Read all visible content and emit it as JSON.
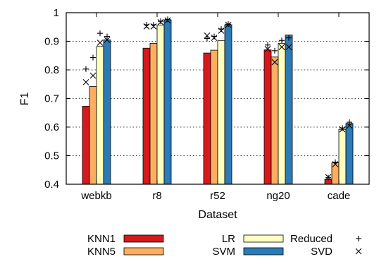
{
  "chart_data": {
    "type": "bar",
    "xlabel": "Dataset",
    "ylabel": "F1",
    "ylim": [
      0.4,
      1.0
    ],
    "yticks": [
      "0.4",
      "0.5",
      "0.6",
      "0.7",
      "0.8",
      "0.9",
      "1"
    ],
    "grid": true,
    "categories": [
      "webkb",
      "r8",
      "r52",
      "ng20",
      "cade"
    ],
    "series": [
      {
        "name": "KNN1",
        "color": "#d7191c",
        "values": [
          0.673,
          0.876,
          0.859,
          0.87,
          0.417
        ]
      },
      {
        "name": "KNN5",
        "color": "#fdae61",
        "values": [
          0.742,
          0.893,
          0.869,
          0.845,
          0.475
        ]
      },
      {
        "name": "LR",
        "color": "#ffffbf",
        "values": [
          0.882,
          0.957,
          0.902,
          0.893,
          0.592
        ]
      },
      {
        "name": "SVM",
        "color": "#2c7bb6",
        "values": [
          0.905,
          0.975,
          0.958,
          0.922,
          0.612
        ]
      }
    ],
    "markers": [
      {
        "name": "Reduced",
        "symbol": "+",
        "values": [
          [
            0.803,
            0.843,
            0.928,
            0.917
          ],
          [
            0.958,
            0.958,
            0.97,
            0.977
          ],
          [
            0.91,
            0.917,
            0.943,
            0.96
          ],
          [
            0.887,
            0.867,
            0.903,
            0.912
          ],
          [
            0.423,
            0.477,
            0.597,
            0.617
          ]
        ]
      },
      {
        "name": "SVD",
        "symbol": "×",
        "values": [
          [
            0.757,
            0.78,
            0.895,
            0.905
          ],
          [
            0.952,
            0.952,
            0.967,
            0.973
          ],
          [
            0.92,
            0.912,
            0.937,
            0.958
          ],
          [
            0.873,
            0.827,
            0.88,
            0.88
          ],
          [
            0.425,
            0.47,
            0.592,
            0.605
          ]
        ]
      }
    ],
    "legend_position": "bottom"
  }
}
